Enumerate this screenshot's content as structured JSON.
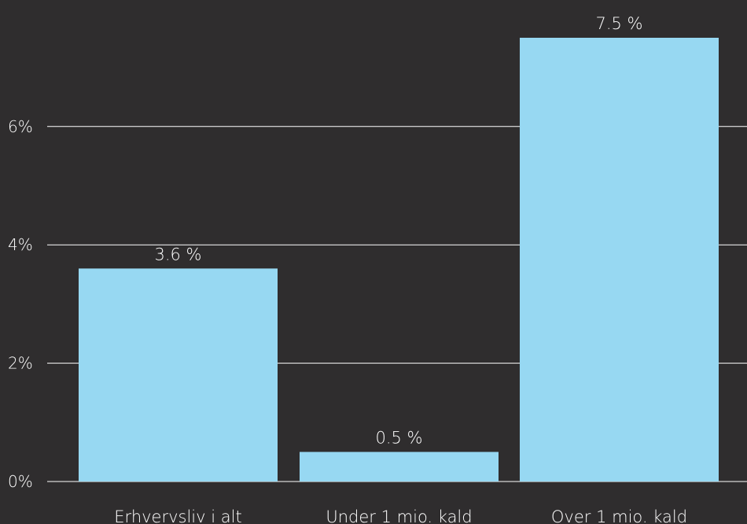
{
  "chart_data": {
    "type": "bar",
    "title": "",
    "xlabel": "",
    "ylabel": "",
    "categories": [
      "Erhvervsliv i alt",
      "Under 1 mio. kald",
      "Over 1 mio. kald"
    ],
    "values": [
      3.6,
      0.5,
      7.5
    ],
    "data_labels": [
      "3.6 %",
      "0.5 %",
      "7.5 %"
    ],
    "ylim": [
      0,
      7.5
    ],
    "yticks": [
      0,
      2,
      4,
      6
    ],
    "ytick_labels": [
      "0%",
      "2%",
      "4%",
      "6%"
    ],
    "grid": true,
    "colors": {
      "background": "#2f2d2e",
      "bar": "#97d8f2",
      "text": "#ffffff",
      "grid": "#ffffff"
    }
  }
}
